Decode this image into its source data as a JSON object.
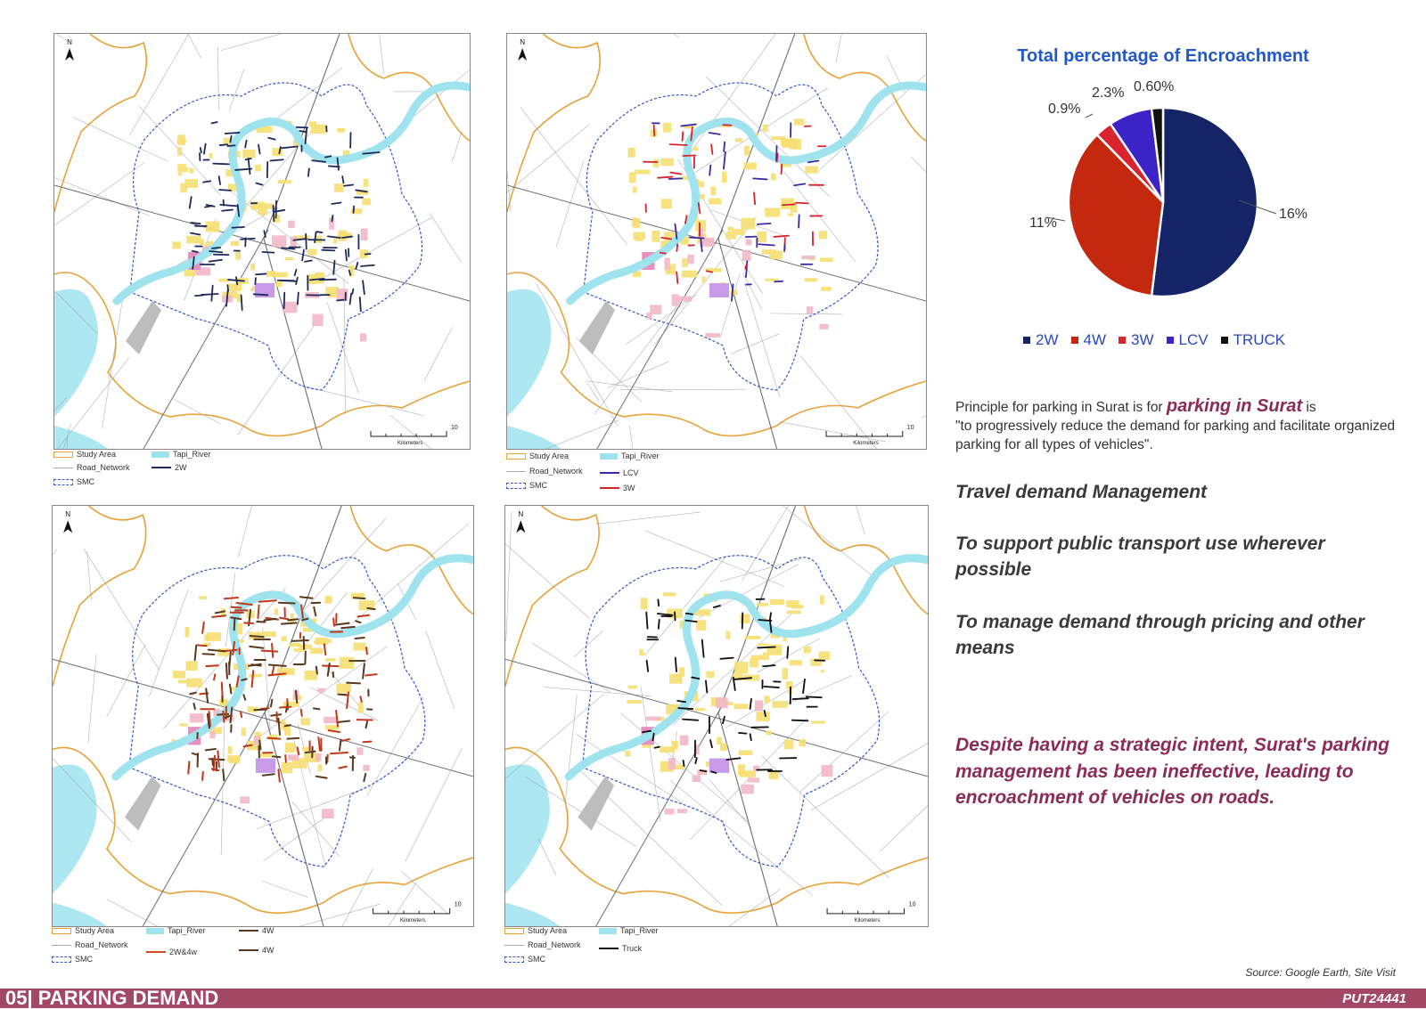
{
  "maps": [
    {
      "id": "map-2w",
      "legend": {
        "study_area": "Study Area",
        "road_network": "Road_Network",
        "smc": "SMC",
        "tapi_river": "Tapi_River",
        "layers": [
          {
            "label": "2W",
            "color": "#1e2a5a"
          }
        ]
      },
      "scale_unit": "Kilometers",
      "scale_max": "10",
      "north": "N",
      "highlight_colors": [
        "#1e2a5a"
      ]
    },
    {
      "id": "map-lcv-3w",
      "legend": {
        "study_area": "Study Area",
        "road_network": "Road_Network",
        "smc": "SMC",
        "tapi_river": "Tapi_River",
        "layers": [
          {
            "label": "LCV",
            "color": "#3b2aa6"
          },
          {
            "label": "3W",
            "color": "#d9232e"
          }
        ]
      },
      "scale_unit": "Kilometers",
      "scale_max": "10",
      "north": "N",
      "highlight_colors": [
        "#3b2aa6",
        "#d9232e"
      ]
    },
    {
      "id": "map-4w",
      "legend": {
        "study_area": "Study Area",
        "road_network": "Road_Network",
        "smc": "SMC",
        "tapi_river": "Tapi_River",
        "layers": [
          {
            "label": "4W",
            "color": "#5a3a1e"
          },
          {
            "label": "2W&4w",
            "color": "#d24a1e"
          },
          {
            "label": "4W",
            "color": "#5a3a1e"
          }
        ]
      },
      "scale_unit": "Kilometers",
      "scale_max": "10",
      "north": "N",
      "highlight_colors": [
        "#c0391b",
        "#5a3a1e"
      ]
    },
    {
      "id": "map-truck",
      "legend": {
        "study_area": "Study Area",
        "road_network": "Road_Network",
        "smc": "SMC",
        "tapi_river": "Tapi_River",
        "layers": [
          {
            "label": "Truck",
            "color": "#111111"
          }
        ]
      },
      "scale_unit": "Kilometers",
      "scale_max": "10",
      "north": "N",
      "highlight_colors": [
        "#111111"
      ]
    }
  ],
  "chart_data": {
    "type": "pie",
    "title": "Total percentage of Encroachment",
    "slices": [
      {
        "label": "2W",
        "value_label": "16%",
        "value": 16,
        "color": "#142466"
      },
      {
        "label": "4W",
        "value_label": "11%",
        "value": 11,
        "color": "#c4280f"
      },
      {
        "label": "3W",
        "value_label": "0.9%",
        "value": 0.9,
        "color": "#d9232e"
      },
      {
        "label": "LCV",
        "value_label": "2.3%",
        "value": 2.3,
        "color": "#3a24c8"
      },
      {
        "label": "TRUCK",
        "value_label": "0.60%",
        "value": 0.6,
        "color": "#111111"
      }
    ],
    "legend_position": "bottom"
  },
  "text": {
    "principle_prefix": "Principle for parking in Surat is for ",
    "principle_emphasis": "parking in Surat",
    "principle_suffix": " is",
    "principle_quote": "\"to progressively reduce the demand for parking and facilitate organized parking for all types of vehicles\".",
    "heading_1": "Travel demand Management",
    "heading_2": "To support public transport use wherever possible",
    "heading_3": "To manage demand through pricing and other means",
    "conclusion": "Despite having a strategic intent, Surat's parking management has been ineffective, leading to encroachment of vehicles on roads."
  },
  "footer": {
    "source": "Source: Google Earth, Site Visit",
    "title": "05| PARKING DEMAND",
    "code": "PUT24441"
  },
  "colors": {
    "footer_bar": "#a24865",
    "accent_text": "#8b2c56",
    "chart_title": "#2558c7",
    "study_area_line": "#e8a23a",
    "river": "#9fe3ef",
    "smc_boundary": "#3457c9",
    "landuse_yellow": "#f6df72",
    "landuse_pink": "#f2b8c8",
    "landuse_magenta": "#e78fbf",
    "landuse_purple": "#c89be8"
  }
}
